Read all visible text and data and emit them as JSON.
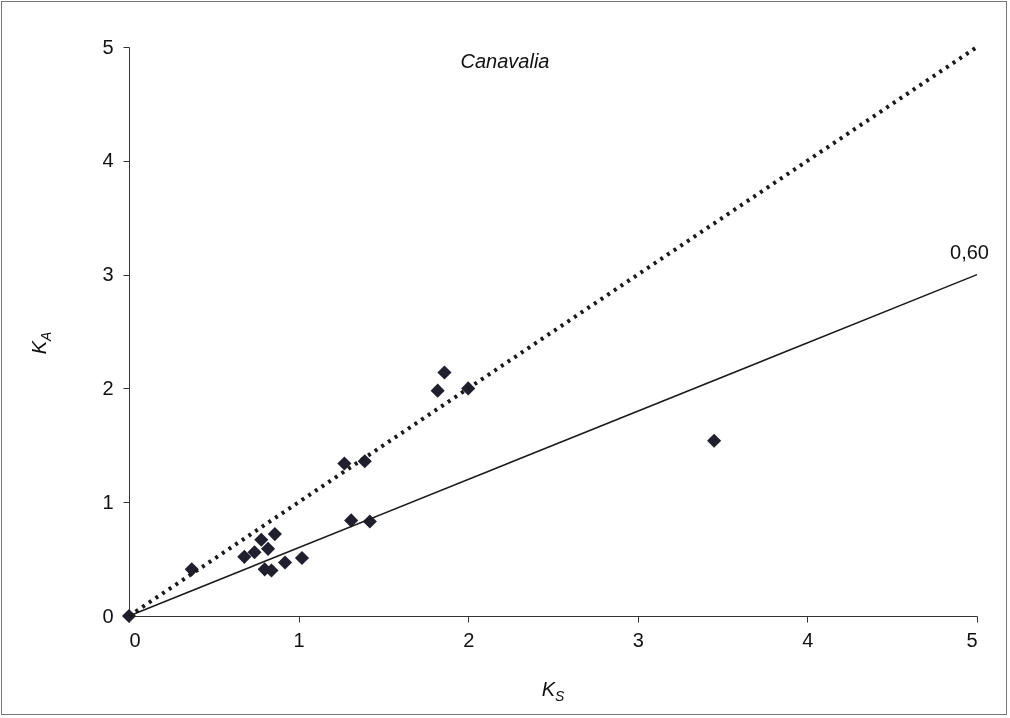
{
  "chart_data": {
    "type": "scatter",
    "title": "Canavalia",
    "xlabel": "K$_{S}$",
    "ylabel": "K$_{A}$",
    "grid": false,
    "xlim": [
      0,
      5
    ],
    "ylim": [
      0,
      5
    ],
    "xticks": [
      0,
      1,
      2,
      3,
      4,
      5
    ],
    "yticks": [
      0,
      1,
      2,
      3,
      4,
      5
    ],
    "annotations": [
      {
        "text": "0,60",
        "x": 5,
        "y": 3
      }
    ],
    "series": [
      {
        "marker": "diamond",
        "color": "#1f1f2e",
        "x": [
          0,
          0.37,
          0.68,
          0.74,
          0.78,
          0.82,
          0.86,
          0.8,
          0.84,
          0.92,
          1.02,
          1.31,
          1.42,
          1.27,
          1.39,
          1.82,
          1.86,
          2.0,
          3.45
        ],
        "values": [
          0,
          0.41,
          0.52,
          0.56,
          0.67,
          0.59,
          0.72,
          0.41,
          0.4,
          0.47,
          0.51,
          0.84,
          0.83,
          1.34,
          1.36,
          1.98,
          2.14,
          2.0,
          1.54
        ]
      },
      {
        "type": "line",
        "color": "#1a1a1a",
        "line_style": "dotted",
        "x": [
          0,
          5
        ],
        "values": [
          0,
          5
        ]
      },
      {
        "type": "line",
        "color": "#1a1a1a",
        "line_style": "solid",
        "x": [
          0,
          5
        ],
        "values": [
          0,
          3
        ]
      }
    ]
  }
}
